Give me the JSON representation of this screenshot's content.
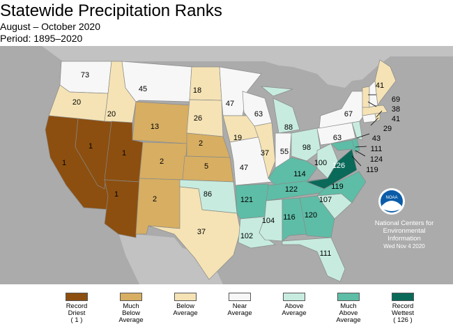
{
  "title": "Statewide Precipitation Ranks",
  "subtitle": "August – October 2020",
  "period": "Period: 1895–2020",
  "colors": {
    "record_driest": "#8c4f10",
    "much_below": "#d7ae62",
    "below": "#f5e3b5",
    "near": "#f7f7f7",
    "above": "#c7ecdf",
    "much_above": "#5ebda7",
    "record_wettest": "#0a6a5a",
    "water": "#ababab"
  },
  "legend": [
    {
      "label": "Record\nDriest\n( 1 )",
      "color": "#8c4f10"
    },
    {
      "label": "Much\nBelow\nAverage",
      "color": "#d7ae62"
    },
    {
      "label": "Below\nAverage",
      "color": "#f5e3b5"
    },
    {
      "label": "Near\nAverage",
      "color": "#f7f7f7"
    },
    {
      "label": "Above\nAverage",
      "color": "#c7ecdf"
    },
    {
      "label": "Much\nAbove\nAverage",
      "color": "#5ebda7"
    },
    {
      "label": "Record\nWettest\n( 126 )",
      "color": "#0a6a5a"
    }
  ],
  "logo": {
    "text": "NOAA",
    "icon": "noaa-logo-icon"
  },
  "credit": {
    "line1": "National Centers for",
    "line2": "Environmental",
    "line3": "Information",
    "date": "Wed Nov  4 2020"
  },
  "states": [
    {
      "id": "WA",
      "rank": "73",
      "cat": "near"
    },
    {
      "id": "OR",
      "rank": "20",
      "cat": "below"
    },
    {
      "id": "CA",
      "rank": "1",
      "cat": "record_driest"
    },
    {
      "id": "NV",
      "rank": "1",
      "cat": "record_driest"
    },
    {
      "id": "ID",
      "rank": "20",
      "cat": "below"
    },
    {
      "id": "MT",
      "rank": "45",
      "cat": "near"
    },
    {
      "id": "WY",
      "rank": "13",
      "cat": "much_below"
    },
    {
      "id": "UT",
      "rank": "1",
      "cat": "record_driest"
    },
    {
      "id": "AZ",
      "rank": "1",
      "cat": "record_driest"
    },
    {
      "id": "CO",
      "rank": "2",
      "cat": "much_below"
    },
    {
      "id": "NM",
      "rank": "2",
      "cat": "much_below"
    },
    {
      "id": "ND",
      "rank": "18",
      "cat": "below"
    },
    {
      "id": "SD",
      "rank": "26",
      "cat": "below"
    },
    {
      "id": "NE",
      "rank": "2",
      "cat": "much_below"
    },
    {
      "id": "KS",
      "rank": "5",
      "cat": "much_below"
    },
    {
      "id": "OK",
      "rank": "86",
      "cat": "above"
    },
    {
      "id": "TX",
      "rank": "37",
      "cat": "below"
    },
    {
      "id": "MN",
      "rank": "47",
      "cat": "near"
    },
    {
      "id": "IA",
      "rank": "19",
      "cat": "below"
    },
    {
      "id": "MO",
      "rank": "47",
      "cat": "near"
    },
    {
      "id": "AR",
      "rank": "121",
      "cat": "much_above"
    },
    {
      "id": "LA",
      "rank": "102",
      "cat": "above"
    },
    {
      "id": "WI",
      "rank": "63",
      "cat": "near"
    },
    {
      "id": "IL",
      "rank": "37",
      "cat": "below"
    },
    {
      "id": "MI",
      "rank": "88",
      "cat": "above"
    },
    {
      "id": "IN",
      "rank": "55",
      "cat": "near"
    },
    {
      "id": "OH",
      "rank": "98",
      "cat": "above"
    },
    {
      "id": "KY",
      "rank": "114",
      "cat": "much_above"
    },
    {
      "id": "TN",
      "rank": "122",
      "cat": "much_above"
    },
    {
      "id": "MS",
      "rank": "104",
      "cat": "above"
    },
    {
      "id": "AL",
      "rank": "116",
      "cat": "much_above"
    },
    {
      "id": "GA",
      "rank": "120",
      "cat": "much_above"
    },
    {
      "id": "FL",
      "rank": "111",
      "cat": "above"
    },
    {
      "id": "SC",
      "rank": "107",
      "cat": "above"
    },
    {
      "id": "NC",
      "rank": "119",
      "cat": "much_above"
    },
    {
      "id": "VA",
      "rank": "126",
      "cat": "record_wettest"
    },
    {
      "id": "WV",
      "rank": "100",
      "cat": "above"
    },
    {
      "id": "PA",
      "rank": "63",
      "cat": "near"
    },
    {
      "id": "NY",
      "rank": "67",
      "cat": "near"
    },
    {
      "id": "ME",
      "rank": "41",
      "cat": "below"
    },
    {
      "id": "NH",
      "rank": "69",
      "cat": "near"
    },
    {
      "id": "VT",
      "rank": "38",
      "cat": "below"
    },
    {
      "id": "MA",
      "rank": "41",
      "cat": "below"
    },
    {
      "id": "RI",
      "rank": "29",
      "cat": "below"
    },
    {
      "id": "CT",
      "rank": "43",
      "cat": "near"
    },
    {
      "id": "NJ",
      "rank": "111",
      "cat": "above"
    },
    {
      "id": "DE",
      "rank": "124",
      "cat": "much_above"
    },
    {
      "id": "MD",
      "rank": "119",
      "cat": "much_above"
    }
  ]
}
